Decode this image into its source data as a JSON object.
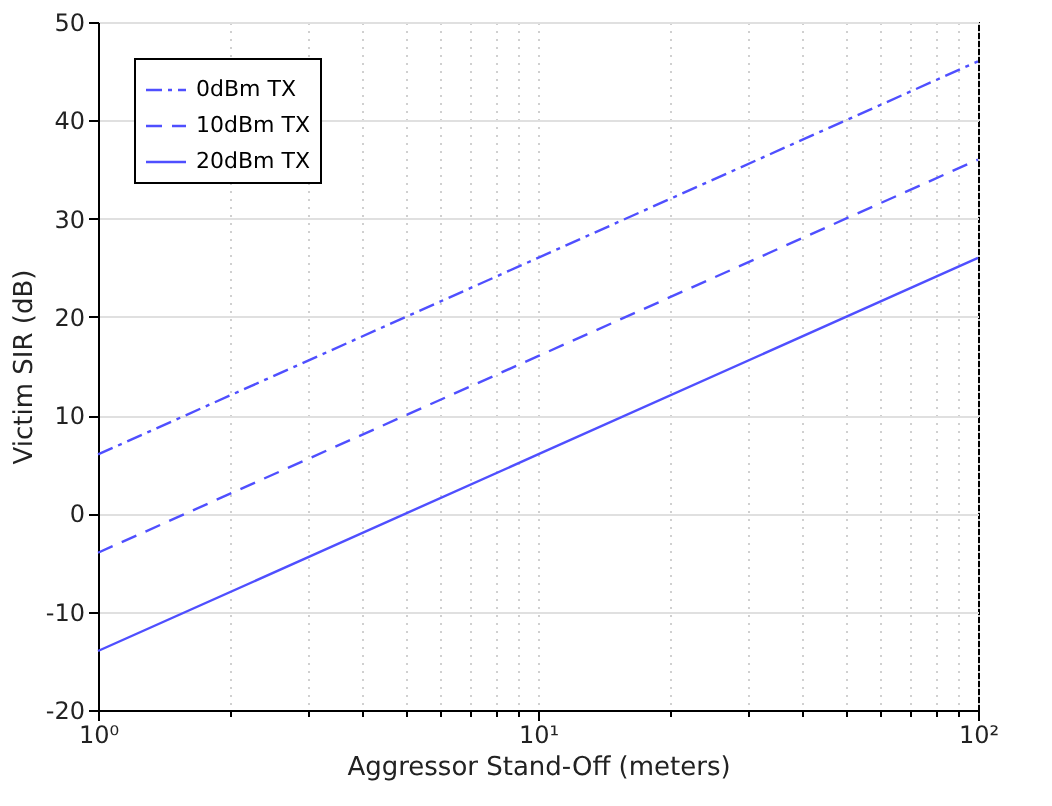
{
  "chart_data": {
    "type": "line",
    "xlabel": "Aggressor Stand-Off (meters)",
    "ylabel": "Victim SIR (dB)",
    "x": [
      1,
      10,
      100
    ],
    "series": [
      {
        "name": "0dBm TX",
        "color": "#4f4fff",
        "values": [
          6,
          26,
          46
        ],
        "line_style": "dashdot"
      },
      {
        "name": "10dBm TX",
        "color": "#4f4fff",
        "values": [
          -4,
          16,
          36
        ],
        "line_style": "dashed"
      },
      {
        "name": "20dBm TX",
        "color": "#4f4fff",
        "values": [
          -14,
          6,
          26
        ],
        "line_style": "solid"
      }
    ],
    "log": "x",
    "xlim": [
      1,
      100
    ],
    "xticks": [
      {
        "value": 1,
        "label": "10⁰"
      },
      {
        "value": 2,
        "label": null
      },
      {
        "value": 3,
        "label": null
      },
      {
        "value": 4,
        "label": null
      },
      {
        "value": 5,
        "label": null
      },
      {
        "value": 6,
        "label": null
      },
      {
        "value": 7,
        "label": null
      },
      {
        "value": 8,
        "label": null
      },
      {
        "value": 9,
        "label": null
      },
      {
        "value": 10,
        "label": "10¹"
      },
      {
        "value": 20,
        "label": null
      },
      {
        "value": 30,
        "label": null
      },
      {
        "value": 40,
        "label": null
      },
      {
        "value": 50,
        "label": null
      },
      {
        "value": 60,
        "label": null
      },
      {
        "value": 70,
        "label": null
      },
      {
        "value": 80,
        "label": null
      },
      {
        "value": 90,
        "label": null
      },
      {
        "value": 100,
        "label": "10²"
      }
    ],
    "ylim": [
      -20,
      50
    ],
    "yticks": [
      -20,
      -10,
      0,
      10,
      20,
      30,
      40,
      50
    ],
    "grid": true,
    "legend": "top left",
    "marker": "none"
  }
}
